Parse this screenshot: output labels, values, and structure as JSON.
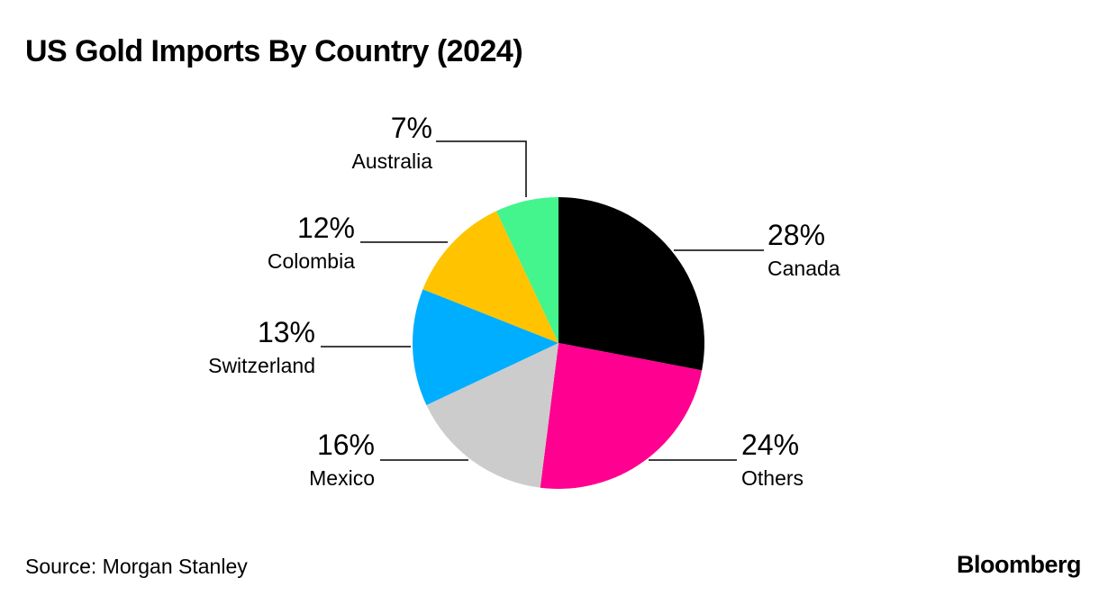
{
  "chart_data": {
    "type": "pie",
    "title": "US Gold Imports By Country (2024)",
    "unit": "%",
    "start_angle_deg": 0,
    "direction": "clockwise",
    "slices": [
      {
        "label": "Canada",
        "value": 28,
        "display": "28%",
        "color": "#000000"
      },
      {
        "label": "Others",
        "value": 24,
        "display": "24%",
        "color": "#FF0090"
      },
      {
        "label": "Mexico",
        "value": 16,
        "display": "16%",
        "color": "#CCCCCC"
      },
      {
        "label": "Switzerland",
        "value": 13,
        "display": "13%",
        "color": "#00AEFF"
      },
      {
        "label": "Colombia",
        "value": 12,
        "display": "12%",
        "color": "#FFC300"
      },
      {
        "label": "Australia",
        "value": 7,
        "display": "7%",
        "color": "#44F48C"
      }
    ]
  },
  "source": "Source: Morgan Stanley",
  "brand": "Bloomberg"
}
